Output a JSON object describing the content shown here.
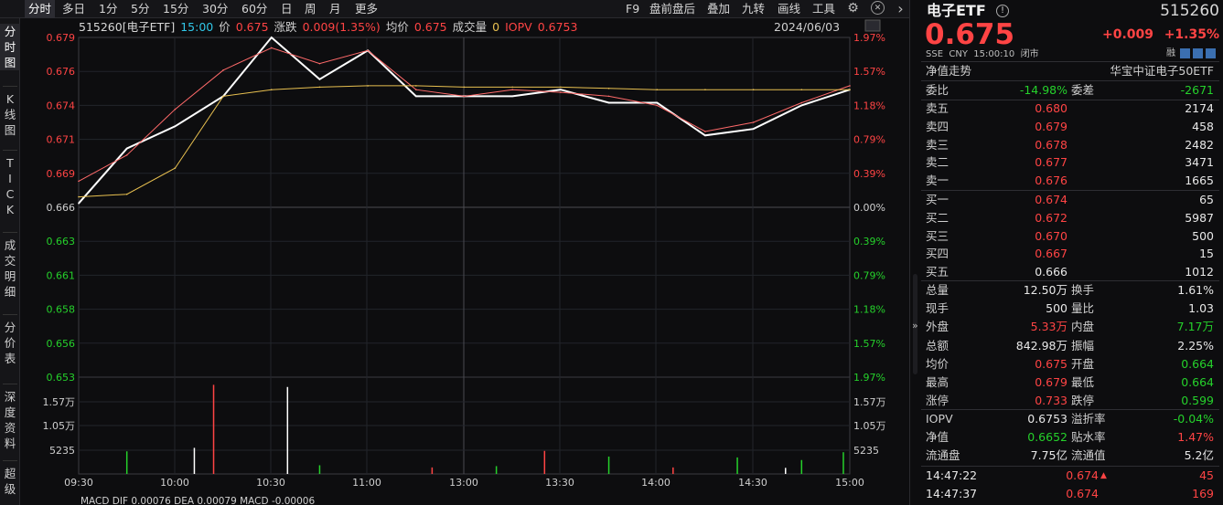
{
  "toolbar": {
    "tabs": [
      "分时",
      "多日",
      "1分",
      "5分",
      "15分",
      "30分",
      "60分",
      "日",
      "周",
      "月",
      "更多"
    ],
    "right_items": [
      "F9",
      "盘前盘后",
      "叠加",
      "九转",
      "画线",
      "工具"
    ],
    "icons": [
      "settings-icon",
      "close-icon",
      "chevron-right-icon"
    ]
  },
  "left_tabs": [
    "分\n时\n图",
    "K\n线\n图",
    "T\nI\nC\nK",
    "成\n交\n明\n细",
    "分\n价\n表",
    "深\n度\n资\n料",
    "超\n级"
  ],
  "chart_header": {
    "code_name": "515260[电子ETF]",
    "time": "15:00",
    "price_label": "价",
    "price": "0.675",
    "change_label": "涨跌",
    "change": "0.009(1.35%)",
    "avg_label": "均价",
    "avg": "0.675",
    "volume_label": "成交量",
    "volume": "0",
    "iopv_label": "IOPV",
    "iopv": "0.6753",
    "date": "2024/06/03"
  },
  "price_axis_left": [
    "0.679",
    "0.676",
    "0.674",
    "0.671",
    "0.669",
    "0.666",
    "0.663",
    "0.661",
    "0.658",
    "0.656",
    "0.653"
  ],
  "price_axis_right": [
    "1.97%",
    "1.57%",
    "1.18%",
    "0.79%",
    "0.39%",
    "0.00%",
    "0.39%",
    "0.79%",
    "1.18%",
    "1.57%",
    "1.97%"
  ],
  "volume_axis_left": [
    "1.57万",
    "1.05万",
    "5235"
  ],
  "volume_axis_right": [
    "1.57万",
    "1.05万",
    "5235"
  ],
  "time_axis": [
    "09:30",
    "10:00",
    "10:30",
    "11:00",
    "13:00",
    "13:30",
    "14:00",
    "14:30",
    "15:00"
  ],
  "macd_label": "MACD DIF 0.00076 DEA 0.00079 MACD -0.00006",
  "chart_data": {
    "type": "line",
    "title": "",
    "xlabel": "",
    "ylabel": "",
    "ylim": [
      0.653,
      0.679
    ],
    "x": [
      "09:30",
      "09:45",
      "10:00",
      "10:15",
      "10:30",
      "10:45",
      "11:00",
      "11:15",
      "11:30/13:00",
      "13:15",
      "13:30",
      "13:45",
      "14:00",
      "14:15",
      "14:30",
      "14:45",
      "15:00"
    ],
    "series": [
      {
        "name": "价",
        "color": "#ffffff",
        "values": [
          0.6663,
          0.6705,
          0.6722,
          0.6745,
          0.679,
          0.6758,
          0.678,
          0.6745,
          0.6745,
          0.6745,
          0.675,
          0.674,
          0.674,
          0.6715,
          0.672,
          0.6738,
          0.675
        ]
      },
      {
        "name": "IOPV",
        "color": "#ff6a6a",
        "values": [
          0.668,
          0.67,
          0.6735,
          0.6765,
          0.6782,
          0.677,
          0.678,
          0.675,
          0.6745,
          0.675,
          0.6748,
          0.6745,
          0.6738,
          0.6718,
          0.6725,
          0.674,
          0.6753
        ]
      },
      {
        "name": "均价",
        "color": "#e8c050",
        "values": [
          0.6668,
          0.667,
          0.669,
          0.6745,
          0.675,
          0.6752,
          0.6753,
          0.6753,
          0.6752,
          0.6752,
          0.6752,
          0.6751,
          0.675,
          0.675,
          0.675,
          0.675,
          0.675
        ]
      }
    ],
    "volume_series": {
      "name": "成交量",
      "ylim": [
        0,
        21000
      ],
      "bars": [
        {
          "t": "10:12",
          "v": 20500,
          "c": "#ff4444"
        },
        {
          "t": "10:35",
          "v": 20000,
          "c": "#ffffff"
        },
        {
          "t": "10:06",
          "v": 6000,
          "c": "#ffffff"
        },
        {
          "t": "09:45",
          "v": 5200,
          "c": "#25d12b"
        },
        {
          "t": "13:25",
          "v": 5300,
          "c": "#ff4444"
        },
        {
          "t": "13:45",
          "v": 4000,
          "c": "#25d12b"
        },
        {
          "t": "14:25",
          "v": 3800,
          "c": "#25d12b"
        },
        {
          "t": "14:45",
          "v": 3200,
          "c": "#25d12b"
        },
        {
          "t": "14:58",
          "v": 5000,
          "c": "#25d12b"
        },
        {
          "t": "10:45",
          "v": 2000,
          "c": "#25d12b"
        },
        {
          "t": "11:20",
          "v": 1500,
          "c": "#ff4444"
        },
        {
          "t": "13:10",
          "v": 1800,
          "c": "#25d12b"
        },
        {
          "t": "14:05",
          "v": 1500,
          "c": "#ff4444"
        },
        {
          "t": "14:40",
          "v": 1400,
          "c": "#ffffff"
        }
      ]
    }
  },
  "quote": {
    "name": "电子ETF",
    "code": "515260",
    "price": "0.675",
    "change": "+0.009",
    "change_pct": "+1.35%",
    "meta": "SSE  CNY  15:00:10  闭市",
    "rong": "融",
    "nav_trend_label": "净值走势",
    "index_name": "华宝中证电子50ETF"
  },
  "order_book": {
    "weibi_label": "委比",
    "weibi": "-14.98%",
    "weicha_label": "委差",
    "weicha": "-2671",
    "sells": [
      {
        "label": "卖五",
        "price": "0.680",
        "vol": "2174"
      },
      {
        "label": "卖四",
        "price": "0.679",
        "vol": "458"
      },
      {
        "label": "卖三",
        "price": "0.678",
        "vol": "2482"
      },
      {
        "label": "卖二",
        "price": "0.677",
        "vol": "3471"
      },
      {
        "label": "卖一",
        "price": "0.676",
        "vol": "1665"
      }
    ],
    "buys": [
      {
        "label": "买一",
        "price": "0.674",
        "vol": "65"
      },
      {
        "label": "买二",
        "price": "0.672",
        "vol": "5987"
      },
      {
        "label": "买三",
        "price": "0.670",
        "vol": "500"
      },
      {
        "label": "买四",
        "price": "0.667",
        "vol": "15"
      },
      {
        "label": "买五",
        "price": "0.666",
        "vol": "1012"
      }
    ]
  },
  "stats": [
    {
      "l1": "总量",
      "v1": "12.50万",
      "c1": "white",
      "l2": "换手",
      "v2": "1.61%",
      "c2": "white"
    },
    {
      "l1": "现手",
      "v1": "500",
      "c1": "white",
      "l2": "量比",
      "v2": "1.03",
      "c2": "white"
    },
    {
      "l1": "外盘",
      "v1": "5.33万",
      "c1": "red",
      "l2": "内盘",
      "v2": "7.17万",
      "c2": "green"
    },
    {
      "l1": "总额",
      "v1": "842.98万",
      "c1": "white",
      "l2": "振幅",
      "v2": "2.25%",
      "c2": "white"
    },
    {
      "l1": "均价",
      "v1": "0.675",
      "c1": "red",
      "l2": "开盘",
      "v2": "0.664",
      "c2": "green"
    },
    {
      "l1": "最高",
      "v1": "0.679",
      "c1": "red",
      "l2": "最低",
      "v2": "0.664",
      "c2": "green"
    },
    {
      "l1": "涨停",
      "v1": "0.733",
      "c1": "red",
      "l2": "跌停",
      "v2": "0.599",
      "c2": "green"
    }
  ],
  "fund": [
    {
      "l1": "IOPV",
      "v1": "0.6753",
      "c1": "white",
      "l2": "溢折率",
      "v2": "-0.04%",
      "c2": "green"
    },
    {
      "l1": "净值",
      "v1": "0.6652",
      "c1": "green",
      "l2": "贴水率",
      "v2": "1.47%",
      "c2": "red"
    },
    {
      "l1": "流通盘",
      "v1": "7.75亿",
      "c1": "white",
      "l2": "流通值",
      "v2": "5.2亿",
      "c2": "white"
    }
  ],
  "ticks": [
    {
      "time": "14:47:22",
      "price": "0.674",
      "arrow": "▲",
      "vol": "45"
    },
    {
      "time": "14:47:37",
      "price": "0.674",
      "arrow": "",
      "vol": "169"
    }
  ],
  "colors": {
    "up": "#ff4444",
    "down": "#25d12b",
    "price_line": "#ffffff",
    "iopv_line": "#ff6a6a",
    "avg_line": "#e8c050",
    "bg": "#0d0d0f"
  }
}
